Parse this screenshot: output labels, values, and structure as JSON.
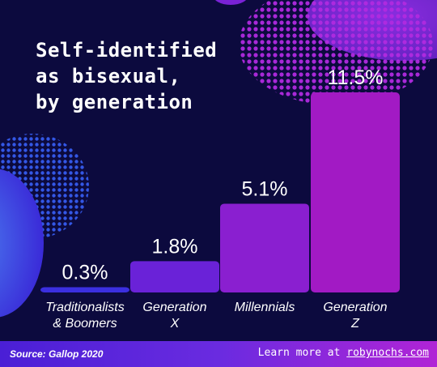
{
  "title_lines": [
    "Self-identified",
    "as bisexual,",
    "by generation"
  ],
  "footer": {
    "source": "Source: Gallop 2020",
    "learn_prefix": "Learn more at ",
    "learn_url": "robynochs.com"
  },
  "colors": {
    "background": "#0c0a3e",
    "bar_traditionalists": "#3b2fe0",
    "bar_genx": "#6a22d8",
    "bar_millennials": "#8a1fd0",
    "bar_genz": "#a21ac4",
    "text": "#ffffff"
  },
  "chart_data": {
    "type": "bar",
    "title": "Self-identified as bisexual, by generation",
    "categories": [
      [
        "Traditionalists",
        "& Boomers"
      ],
      [
        "Generation",
        "X"
      ],
      [
        "Millennials"
      ],
      [
        "Generation",
        "Z"
      ]
    ],
    "values": [
      0.3,
      1.8,
      5.1,
      11.5
    ],
    "value_labels": [
      "0.3%",
      "1.8%",
      "5.1%",
      "11.5%"
    ],
    "ylim": [
      0,
      11.5
    ],
    "grid": false,
    "legend": "none"
  }
}
